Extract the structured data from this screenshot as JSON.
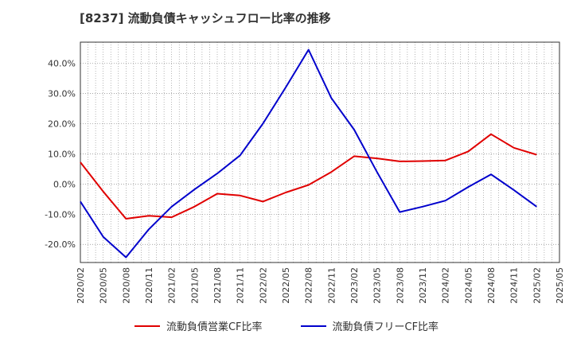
{
  "title": "[8237]  流動負債キャッシュフロー比率の推移",
  "chart_data": {
    "type": "line",
    "ylim": [
      -26,
      47
    ],
    "yticks": [
      -20,
      -10,
      0,
      10,
      20,
      30,
      40
    ],
    "ytick_labels": [
      "-20.0%",
      "-10.0%",
      "0.0%",
      "10.0%",
      "20.0%",
      "30.0%",
      "40.0%"
    ],
    "xlim": [
      "2020/02",
      "2025/05"
    ],
    "xtick_labels": [
      "2020/02",
      "2020/05",
      "2020/08",
      "2020/11",
      "2021/02",
      "2021/05",
      "2021/08",
      "2021/11",
      "2022/02",
      "2022/05",
      "2022/08",
      "2022/11",
      "2023/02",
      "2023/05",
      "2023/08",
      "2023/11",
      "2024/02",
      "2024/05",
      "2024/08",
      "2024/11",
      "2025/02",
      "2025/05"
    ],
    "grid": true,
    "legend_position": "bottom",
    "series": [
      {
        "name": "流動負債営業CF比率",
        "color": "#e00000",
        "points": [
          [
            "2020/02",
            7.2
          ],
          [
            "2020/05",
            -2.5
          ],
          [
            "2020/08",
            -11.5
          ],
          [
            "2020/11",
            -10.5
          ],
          [
            "2021/02",
            -11.0
          ],
          [
            "2021/05",
            -7.5
          ],
          [
            "2021/08",
            -3.2
          ],
          [
            "2021/11",
            -3.8
          ],
          [
            "2022/02",
            -5.8
          ],
          [
            "2022/05",
            -2.8
          ],
          [
            "2022/08",
            -0.3
          ],
          [
            "2022/11",
            4.0
          ],
          [
            "2023/02",
            9.2
          ],
          [
            "2023/05",
            8.5
          ],
          [
            "2023/08",
            7.5
          ],
          [
            "2023/11",
            7.6
          ],
          [
            "2024/02",
            7.8
          ],
          [
            "2024/05",
            10.8
          ],
          [
            "2024/08",
            16.5
          ],
          [
            "2024/11",
            12.0
          ],
          [
            "2025/02",
            9.7
          ]
        ]
      },
      {
        "name": "流動負債フリーCF比率",
        "color": "#0000cc",
        "points": [
          [
            "2020/02",
            -5.8
          ],
          [
            "2020/05",
            -17.5
          ],
          [
            "2020/08",
            -24.3
          ],
          [
            "2020/11",
            -15.0
          ],
          [
            "2021/02",
            -7.5
          ],
          [
            "2021/05",
            -1.8
          ],
          [
            "2021/08",
            3.5
          ],
          [
            "2021/11",
            9.5
          ],
          [
            "2022/02",
            20.0
          ],
          [
            "2022/05",
            32.0
          ],
          [
            "2022/08",
            44.5
          ],
          [
            "2022/11",
            28.5
          ],
          [
            "2023/02",
            18.0
          ],
          [
            "2023/05",
            4.0
          ],
          [
            "2023/08",
            -9.3
          ],
          [
            "2023/11",
            -7.5
          ],
          [
            "2024/02",
            -5.5
          ],
          [
            "2024/05",
            -1.0
          ],
          [
            "2024/08",
            3.2
          ],
          [
            "2024/11",
            -2.0
          ],
          [
            "2025/02",
            -7.5
          ]
        ]
      }
    ]
  }
}
